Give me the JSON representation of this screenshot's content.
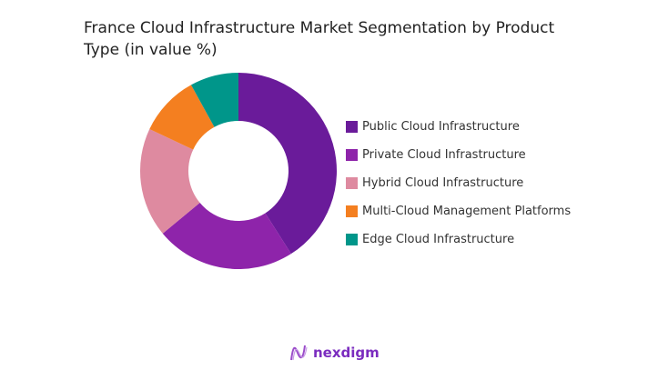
{
  "chart_data": {
    "type": "pie",
    "title": "France Cloud Infrastructure Market Segmentation by Product Type (in value %)",
    "categories": [
      "Public Cloud Infrastructure",
      "Private Cloud Infrastructure",
      "Hybrid Cloud Infrastructure",
      "Multi-Cloud Management Platforms",
      "Edge Cloud Infrastructure"
    ],
    "values": [
      41,
      23,
      18,
      10,
      8
    ],
    "colors": [
      "#6a1b9a",
      "#8e24aa",
      "#de8aa0",
      "#f47f20",
      "#00968a"
    ],
    "donut": true,
    "legend_position": "right"
  },
  "logo": {
    "text": "nexdigm",
    "color": "#7b2cbf"
  }
}
